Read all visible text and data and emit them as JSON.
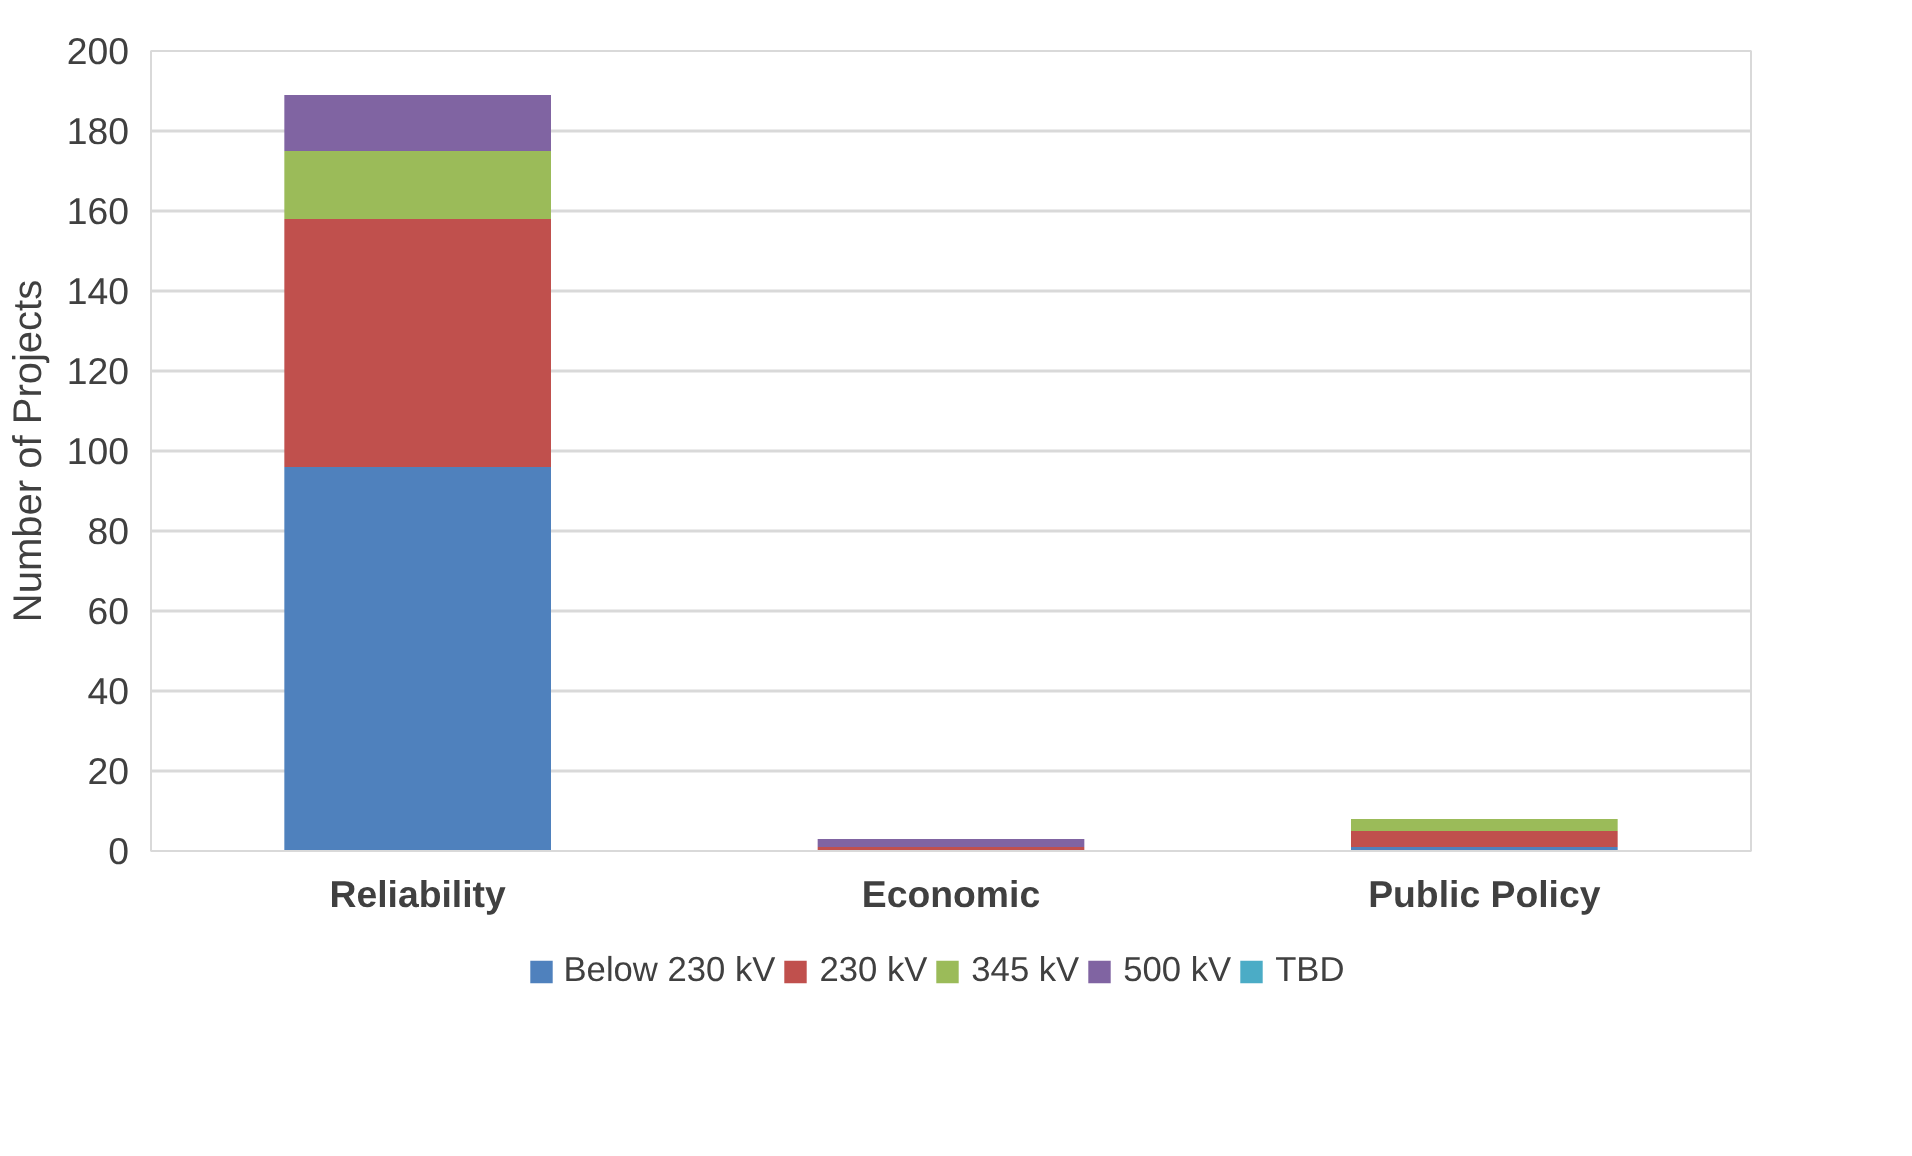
{
  "chart_data": {
    "type": "bar",
    "stacked": true,
    "ylabel": "Number of Projects",
    "categories": [
      "Reliability",
      "Economic",
      "Public Policy"
    ],
    "series": [
      {
        "name": "Below 230 kV",
        "color": "#4f81bd",
        "values": [
          96,
          0,
          1
        ]
      },
      {
        "name": "230 kV",
        "color": "#c0504d",
        "values": [
          62,
          1,
          4
        ]
      },
      {
        "name": "345 kV",
        "color": "#9bbb59",
        "values": [
          17,
          0,
          3
        ]
      },
      {
        "name": "500 kV",
        "color": "#8064a2",
        "values": [
          14,
          2,
          0
        ]
      },
      {
        "name": "TBD",
        "color": "#4bacc6",
        "values": [
          0,
          0,
          0
        ]
      }
    ],
    "ylim": [
      0,
      200
    ],
    "yticks": [
      0,
      20,
      40,
      60,
      80,
      100,
      120,
      140,
      160,
      180,
      200
    ],
    "grid": "y",
    "legend": "bottom"
  }
}
